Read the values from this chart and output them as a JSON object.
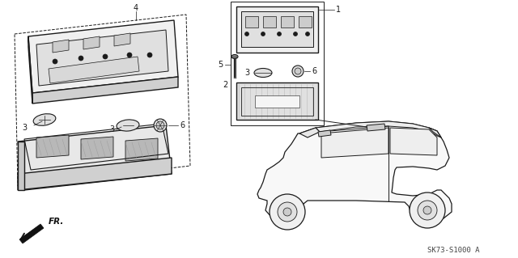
{
  "bg_color": "#ffffff",
  "line_color": "#222222",
  "footer_code": "SK73-S1000 A",
  "diagram_color": "#1a1a1a"
}
